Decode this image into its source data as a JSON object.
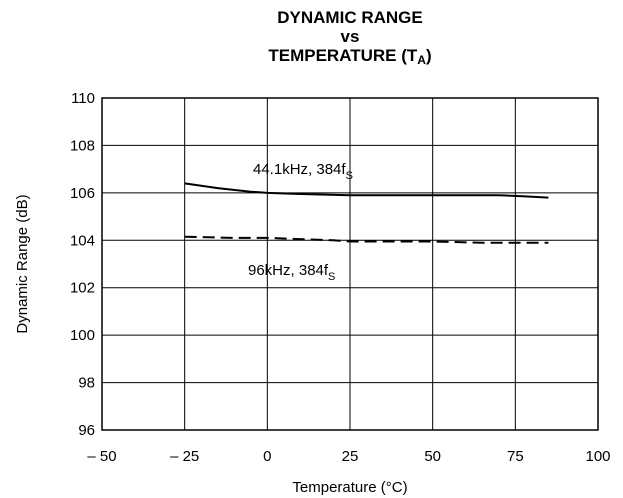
{
  "chart_data": {
    "type": "line",
    "title_line1": "DYNAMIC RANGE",
    "title_line2": "vs",
    "title_line3_main": "TEMPERATURE (T",
    "title_line3_sub": "A",
    "title_line3_end": ")",
    "xlabel": "Temperature (°C)",
    "ylabel": "Dynamic Range (dB)",
    "xlim": [
      -50,
      100
    ],
    "ylim": [
      96,
      110
    ],
    "xticks": [
      -50,
      -25,
      0,
      25,
      50,
      75,
      100
    ],
    "xtick_labels": [
      "– 50",
      "– 25",
      "0",
      "25",
      "50",
      "75",
      "100"
    ],
    "yticks": [
      96,
      98,
      100,
      102,
      104,
      106,
      108,
      110
    ],
    "ytick_labels": [
      "96",
      "98",
      "100",
      "102",
      "104",
      "106",
      "108",
      "110"
    ],
    "grid": true,
    "series": [
      {
        "name": "44.1kHz, 384f",
        "name_sub": "S",
        "style": "solid",
        "x": [
          -25,
          -15,
          -5,
          0,
          10,
          25,
          40,
          55,
          70,
          78,
          85
        ],
        "y": [
          106.4,
          106.2,
          106.05,
          106.0,
          105.95,
          105.9,
          105.9,
          105.9,
          105.9,
          105.85,
          105.8
        ]
      },
      {
        "name": "96kHz, 384f",
        "name_sub": "S",
        "style": "dashed",
        "x": [
          -25,
          -10,
          0,
          10,
          20,
          25,
          35,
          50,
          65,
          75,
          85
        ],
        "y": [
          104.15,
          104.1,
          104.1,
          104.05,
          104.0,
          103.95,
          103.95,
          103.95,
          103.9,
          103.9,
          103.9
        ]
      }
    ]
  }
}
